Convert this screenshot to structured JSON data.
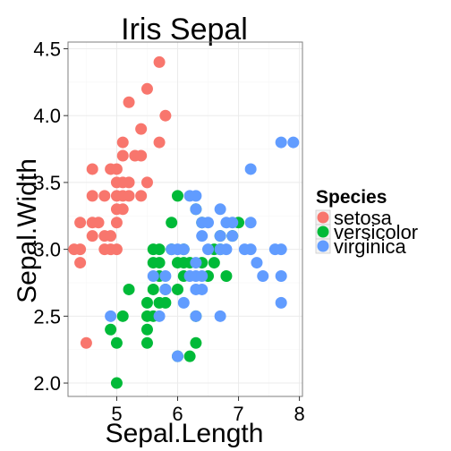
{
  "chart_data": {
    "type": "scatter",
    "title": "Iris Sepal",
    "xlabel": "Sepal.Length",
    "ylabel": "Sepal.Width",
    "xlim": [
      4.2,
      8.05
    ],
    "ylim": [
      1.9,
      4.55
    ],
    "xticks": [
      5,
      6,
      7,
      8
    ],
    "yticks": [
      2.0,
      2.5,
      3.0,
      3.5,
      4.0,
      4.5
    ],
    "xtick_labels": [
      "5",
      "6",
      "7",
      "8"
    ],
    "ytick_labels": [
      "2.0",
      "2.5",
      "3.0",
      "3.5",
      "4.0",
      "4.5"
    ],
    "grid": true,
    "legend": {
      "title": "Species",
      "position": "right"
    },
    "series": [
      {
        "name": "setosa",
        "color": "#F8766D",
        "points": [
          [
            4.3,
            3.0
          ],
          [
            4.4,
            2.9
          ],
          [
            4.4,
            3.0
          ],
          [
            4.4,
            3.2
          ],
          [
            4.5,
            2.3
          ],
          [
            4.6,
            3.1
          ],
          [
            4.6,
            3.2
          ],
          [
            4.6,
            3.4
          ],
          [
            4.6,
            3.6
          ],
          [
            4.7,
            3.2
          ],
          [
            4.8,
            3.0
          ],
          [
            4.8,
            3.1
          ],
          [
            4.8,
            3.4
          ],
          [
            4.9,
            3.0
          ],
          [
            4.9,
            3.1
          ],
          [
            4.9,
            3.6
          ],
          [
            5.0,
            3.0
          ],
          [
            5.0,
            3.2
          ],
          [
            5.0,
            3.3
          ],
          [
            5.0,
            3.4
          ],
          [
            5.0,
            3.5
          ],
          [
            5.0,
            3.6
          ],
          [
            5.1,
            3.3
          ],
          [
            5.1,
            3.4
          ],
          [
            5.1,
            3.5
          ],
          [
            5.1,
            3.7
          ],
          [
            5.1,
            3.8
          ],
          [
            5.2,
            3.4
          ],
          [
            5.2,
            3.5
          ],
          [
            5.2,
            4.1
          ],
          [
            5.3,
            3.7
          ],
          [
            5.4,
            3.4
          ],
          [
            5.4,
            3.7
          ],
          [
            5.4,
            3.9
          ],
          [
            5.5,
            3.5
          ],
          [
            5.5,
            4.2
          ],
          [
            5.7,
            3.8
          ],
          [
            5.7,
            4.4
          ],
          [
            5.8,
            4.0
          ]
        ]
      },
      {
        "name": "versicolor",
        "color": "#00BA38",
        "points": [
          [
            4.9,
            2.4
          ],
          [
            5.0,
            2.0
          ],
          [
            5.0,
            2.3
          ],
          [
            5.1,
            2.5
          ],
          [
            5.2,
            2.7
          ],
          [
            5.5,
            2.3
          ],
          [
            5.5,
            2.4
          ],
          [
            5.5,
            2.5
          ],
          [
            5.5,
            2.6
          ],
          [
            5.6,
            2.5
          ],
          [
            5.6,
            2.7
          ],
          [
            5.6,
            2.9
          ],
          [
            5.6,
            3.0
          ],
          [
            5.7,
            2.6
          ],
          [
            5.7,
            2.8
          ],
          [
            5.7,
            2.9
          ],
          [
            5.7,
            3.0
          ],
          [
            5.8,
            2.6
          ],
          [
            5.8,
            2.7
          ],
          [
            5.9,
            3.0
          ],
          [
            5.9,
            3.2
          ],
          [
            6.0,
            2.2
          ],
          [
            6.0,
            2.7
          ],
          [
            6.0,
            2.9
          ],
          [
            6.0,
            3.4
          ],
          [
            6.1,
            2.8
          ],
          [
            6.1,
            2.9
          ],
          [
            6.1,
            3.0
          ],
          [
            6.2,
            2.2
          ],
          [
            6.2,
            2.9
          ],
          [
            6.3,
            2.3
          ],
          [
            6.3,
            2.5
          ],
          [
            6.3,
            3.3
          ],
          [
            6.4,
            2.9
          ],
          [
            6.4,
            3.2
          ],
          [
            6.5,
            2.8
          ],
          [
            6.6,
            2.9
          ],
          [
            6.6,
            3.0
          ],
          [
            6.7,
            3.0
          ],
          [
            6.7,
            3.1
          ],
          [
            6.8,
            2.8
          ],
          [
            6.9,
            3.1
          ],
          [
            7.0,
            3.2
          ]
        ]
      },
      {
        "name": "virginica",
        "color": "#619CFF",
        "points": [
          [
            4.9,
            2.5
          ],
          [
            5.6,
            2.8
          ],
          [
            5.7,
            2.5
          ],
          [
            5.8,
            2.7
          ],
          [
            5.8,
            2.8
          ],
          [
            5.9,
            3.0
          ],
          [
            6.0,
            2.2
          ],
          [
            6.0,
            3.0
          ],
          [
            6.1,
            2.6
          ],
          [
            6.1,
            3.0
          ],
          [
            6.2,
            2.8
          ],
          [
            6.2,
            3.4
          ],
          [
            6.3,
            2.5
          ],
          [
            6.3,
            2.7
          ],
          [
            6.3,
            2.8
          ],
          [
            6.3,
            2.9
          ],
          [
            6.3,
            3.3
          ],
          [
            6.3,
            3.4
          ],
          [
            6.4,
            2.7
          ],
          [
            6.4,
            2.8
          ],
          [
            6.4,
            3.1
          ],
          [
            6.4,
            3.2
          ],
          [
            6.5,
            3.0
          ],
          [
            6.5,
            3.2
          ],
          [
            6.7,
            2.5
          ],
          [
            6.7,
            3.0
          ],
          [
            6.7,
            3.1
          ],
          [
            6.7,
            3.3
          ],
          [
            6.8,
            3.0
          ],
          [
            6.8,
            3.2
          ],
          [
            6.9,
            3.1
          ],
          [
            6.9,
            3.2
          ],
          [
            7.1,
            3.0
          ],
          [
            7.2,
            3.0
          ],
          [
            7.2,
            3.2
          ],
          [
            7.2,
            3.6
          ],
          [
            7.3,
            2.9
          ],
          [
            7.4,
            2.8
          ],
          [
            7.6,
            3.0
          ],
          [
            7.7,
            2.6
          ],
          [
            7.7,
            2.8
          ],
          [
            7.7,
            3.0
          ],
          [
            7.7,
            3.8
          ],
          [
            7.9,
            3.8
          ]
        ]
      }
    ]
  }
}
